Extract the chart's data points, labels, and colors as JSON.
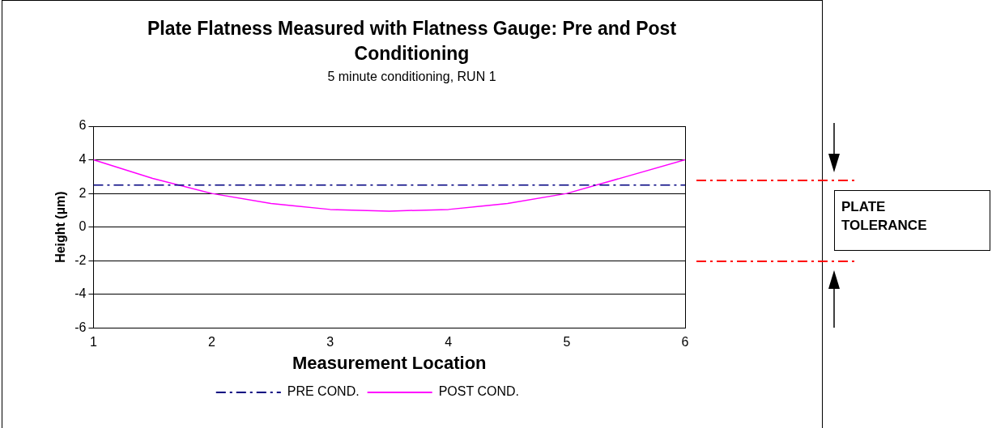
{
  "chart_data": {
    "type": "line",
    "title": "Plate Flatness Measured with Flatness Gauge: Pre and Post Conditioning",
    "subtitle": "5 minute conditioning, RUN 1",
    "xlabel": "Measurement Location",
    "ylabel": "Height (µm)",
    "x": [
      1,
      1.5,
      2,
      2.5,
      3,
      3.5,
      4,
      4.5,
      5,
      5.5,
      6
    ],
    "series": [
      {
        "name": "PRE COND.",
        "color": "#000080",
        "line_style": "dashdot",
        "values": [
          2.5,
          2.5,
          2.5,
          2.5,
          2.5,
          2.5,
          2.5,
          2.5,
          2.5,
          2.5,
          2.5
        ]
      },
      {
        "name": "POST COND.",
        "color": "#ff00ff",
        "line_style": "solid",
        "values": [
          4,
          2.9,
          2,
          1.4,
          1.05,
          0.95,
          1.05,
          1.4,
          2,
          3,
          4
        ]
      }
    ],
    "xlim": [
      1,
      6
    ],
    "xticks": [
      1,
      2,
      3,
      4,
      5,
      6
    ],
    "ylim": [
      -6,
      6
    ],
    "yticks": [
      -6,
      -4,
      -2,
      0,
      2,
      4,
      6
    ],
    "grid": "y",
    "legend": "bottom",
    "marker": "none",
    "annotations": [
      "PLATE TOLERANCE"
    ]
  }
}
